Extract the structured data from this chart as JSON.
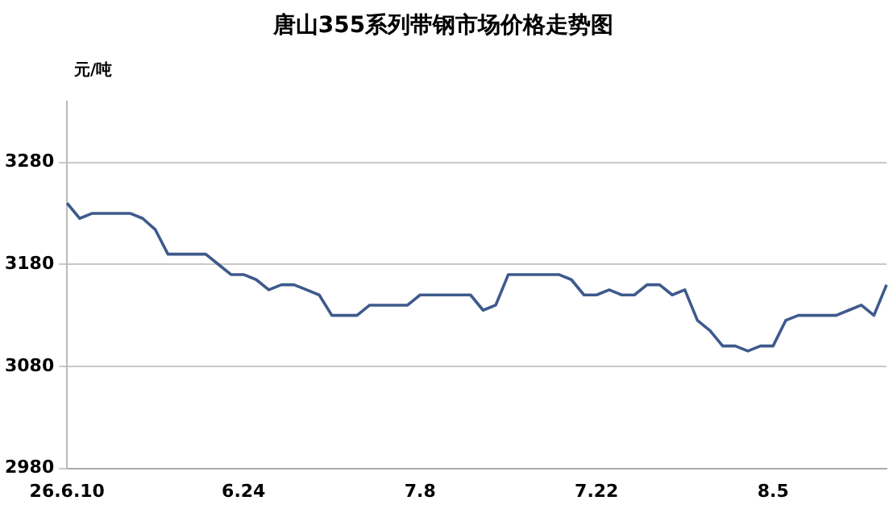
{
  "chart_data": {
    "type": "line",
    "title": "唐山355系列带钢市场价格走势图",
    "ylabel": "元/吨",
    "categories": [
      "26.6.10",
      null,
      null,
      null,
      null,
      null,
      null,
      null,
      null,
      null,
      null,
      null,
      null,
      null,
      "6.24",
      null,
      null,
      null,
      null,
      null,
      null,
      null,
      null,
      null,
      null,
      null,
      null,
      null,
      "7.8",
      null,
      null,
      null,
      null,
      null,
      null,
      null,
      null,
      null,
      null,
      null,
      null,
      null,
      "7.22",
      null,
      null,
      null,
      null,
      null,
      null,
      null,
      null,
      null,
      null,
      null,
      null,
      null,
      "8.5",
      null,
      null,
      null,
      null,
      null,
      null,
      null,
      null,
      null
    ],
    "series": [
      {
        "color": "#3e5a8c",
        "values": [
          3240,
          3225,
          3230,
          3230,
          3230,
          3230,
          3225,
          3214,
          3190,
          3190,
          3190,
          3190,
          3180,
          3170,
          3170,
          3165,
          3155,
          3160,
          3160,
          3155,
          3150,
          3130,
          3130,
          3130,
          3140,
          3140,
          3140,
          3140,
          3150,
          3150,
          3150,
          3150,
          3150,
          3135,
          3140,
          3170,
          3170,
          3170,
          3170,
          3170,
          3165,
          3150,
          3150,
          3155,
          3150,
          3150,
          3160,
          3160,
          3150,
          3155,
          3125,
          3115,
          3100,
          3100,
          3095,
          3100,
          3100,
          3125,
          3130,
          3130,
          3130,
          3130,
          3135,
          3140,
          3130,
          3160
        ]
      }
    ],
    "ylim": [
      2980,
      3340
    ],
    "yticks": [
      2980,
      3080,
      3180,
      3280
    ],
    "grid": "y",
    "legend": false,
    "marker": "none",
    "line_style": "solid"
  }
}
